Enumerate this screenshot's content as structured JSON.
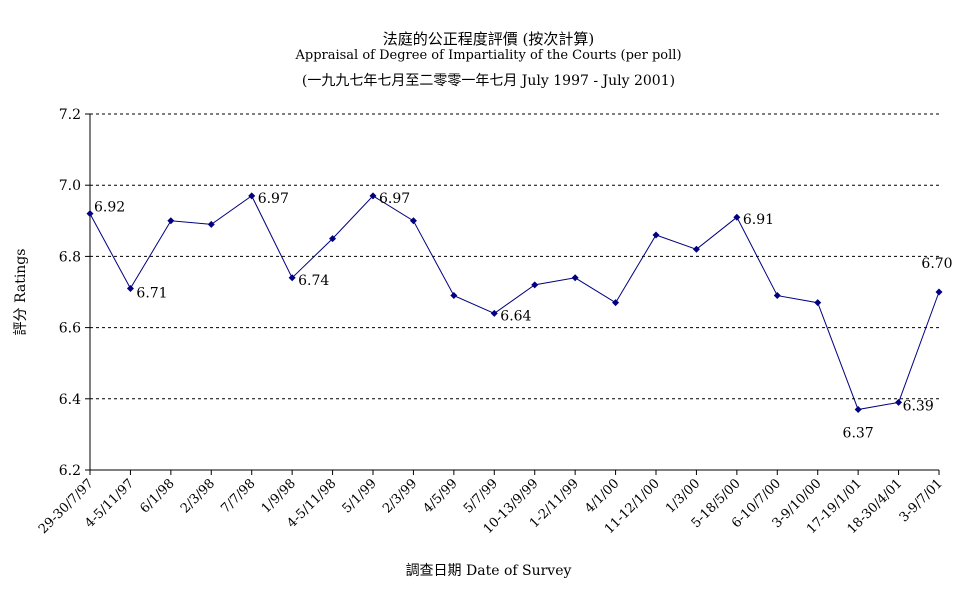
{
  "chart_data": {
    "type": "line",
    "title": "法庭的公正程度評價 (按次計算)",
    "subtitle": "Appraisal of Degree of Impartiality of the Courts (per poll)",
    "subtitle2": "(一九九七年七月至二零零一年七月 July 1997 - July 2001)",
    "xlabel": "調查日期 Date of Survey",
    "ylabel": "評分 Ratings",
    "ylim": [
      6.2,
      7.2
    ],
    "yticks": [
      "6.2",
      "6.4",
      "6.6",
      "6.8",
      "7.0",
      "7.2"
    ],
    "grid": true,
    "line_color": "#000080",
    "categories": [
      "29-30/7/97",
      "4-5/11/97",
      "6/1/98",
      "2/3/98",
      "7/7/98",
      "1/9/98",
      "4-5/11/98",
      "5/1/99",
      "2/3/99",
      "4/5/99",
      "5/7/99",
      "10-13/9/99",
      "1-2/11/99",
      "4/1/00",
      "11-12/1/00",
      "1/3/00",
      "5-18/5/00",
      "6-10/7/00",
      "3-9/10/00",
      "17-19/1/01",
      "18-30/4/01",
      "3-9/7/01"
    ],
    "values": [
      6.92,
      6.71,
      6.9,
      6.89,
      6.97,
      6.74,
      6.85,
      6.97,
      6.9,
      6.69,
      6.64,
      6.72,
      6.74,
      6.67,
      6.86,
      6.82,
      6.91,
      6.69,
      6.67,
      6.37,
      6.39,
      6.7
    ],
    "data_labels": [
      {
        "index": 0,
        "text": "6.92"
      },
      {
        "index": 1,
        "text": "6.71"
      },
      {
        "index": 4,
        "text": "6.97"
      },
      {
        "index": 5,
        "text": "6.74"
      },
      {
        "index": 7,
        "text": "6.97"
      },
      {
        "index": 10,
        "text": "6.64"
      },
      {
        "index": 16,
        "text": "6.91"
      },
      {
        "index": 19,
        "text": "6.37"
      },
      {
        "index": 20,
        "text": "6.39"
      },
      {
        "index": 21,
        "text": "6.70"
      }
    ]
  }
}
